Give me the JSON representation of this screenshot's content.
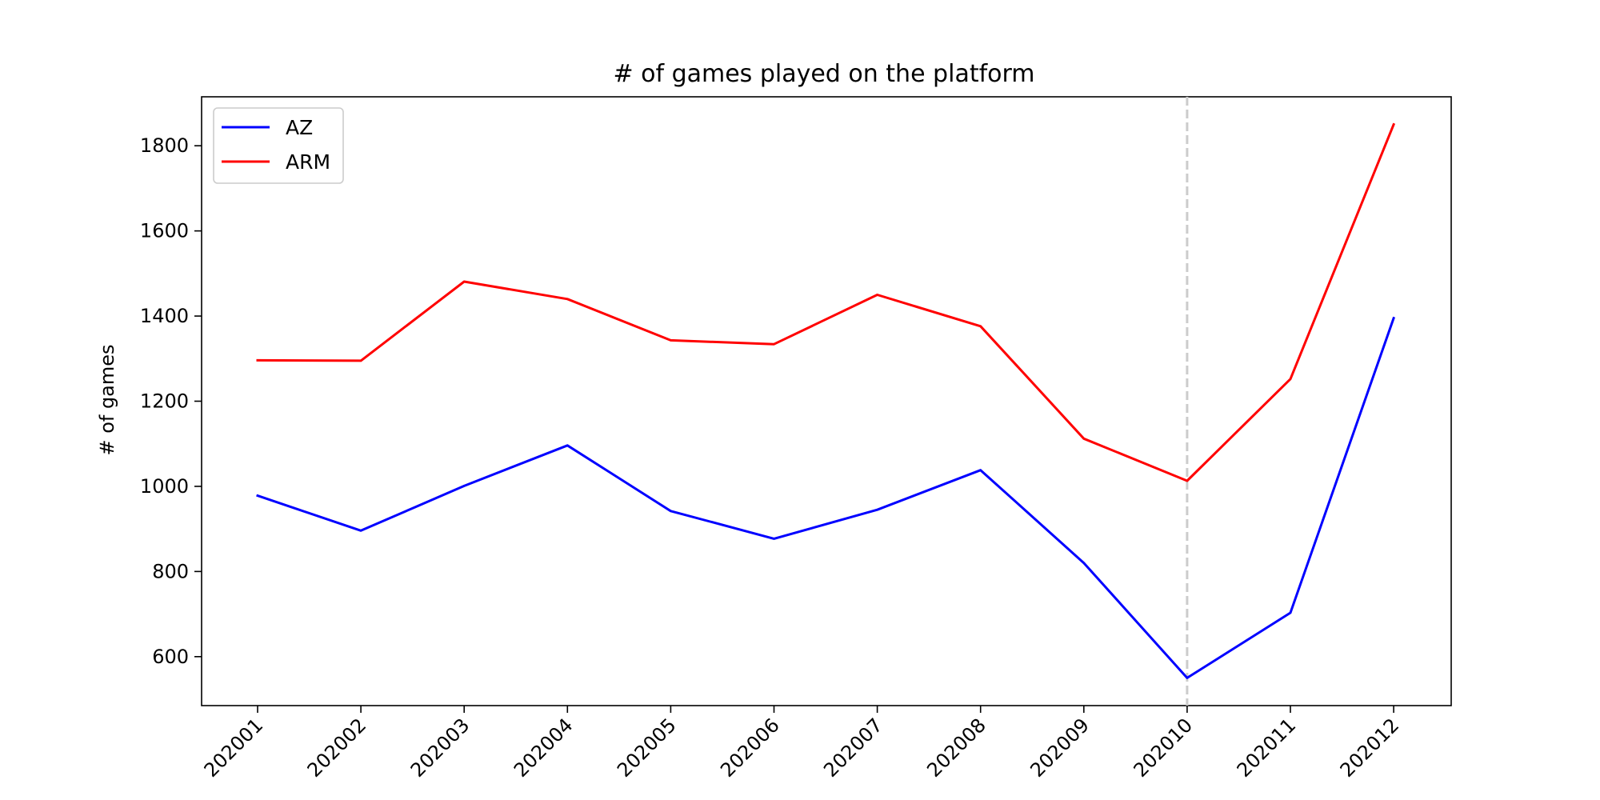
{
  "chart_data": {
    "type": "line",
    "title": "# of games played on the platform",
    "xlabel": "",
    "ylabel": "# of games",
    "categories": [
      "202001",
      "202002",
      "202003",
      "202004",
      "202005",
      "202006",
      "202007",
      "202008",
      "202009",
      "202010",
      "202011",
      "202012"
    ],
    "series": [
      {
        "name": "AZ",
        "color": "#0000ff",
        "values": [
          978,
          896,
          1001,
          1096,
          942,
          877,
          945,
          1038,
          820,
          550,
          703,
          1395
        ]
      },
      {
        "name": "ARM",
        "color": "#ff0000",
        "values": [
          1296,
          1295,
          1481,
          1440,
          1343,
          1334,
          1450,
          1376,
          1112,
          1013,
          1252,
          1850
        ]
      }
    ],
    "ylim": [
      485,
      1915
    ],
    "yticks": [
      600,
      800,
      1000,
      1200,
      1400,
      1600,
      1800
    ],
    "vline": {
      "category": "202010",
      "style": "dashed",
      "color": "#cccccc"
    },
    "grid": false,
    "legend_position": "top-left"
  }
}
